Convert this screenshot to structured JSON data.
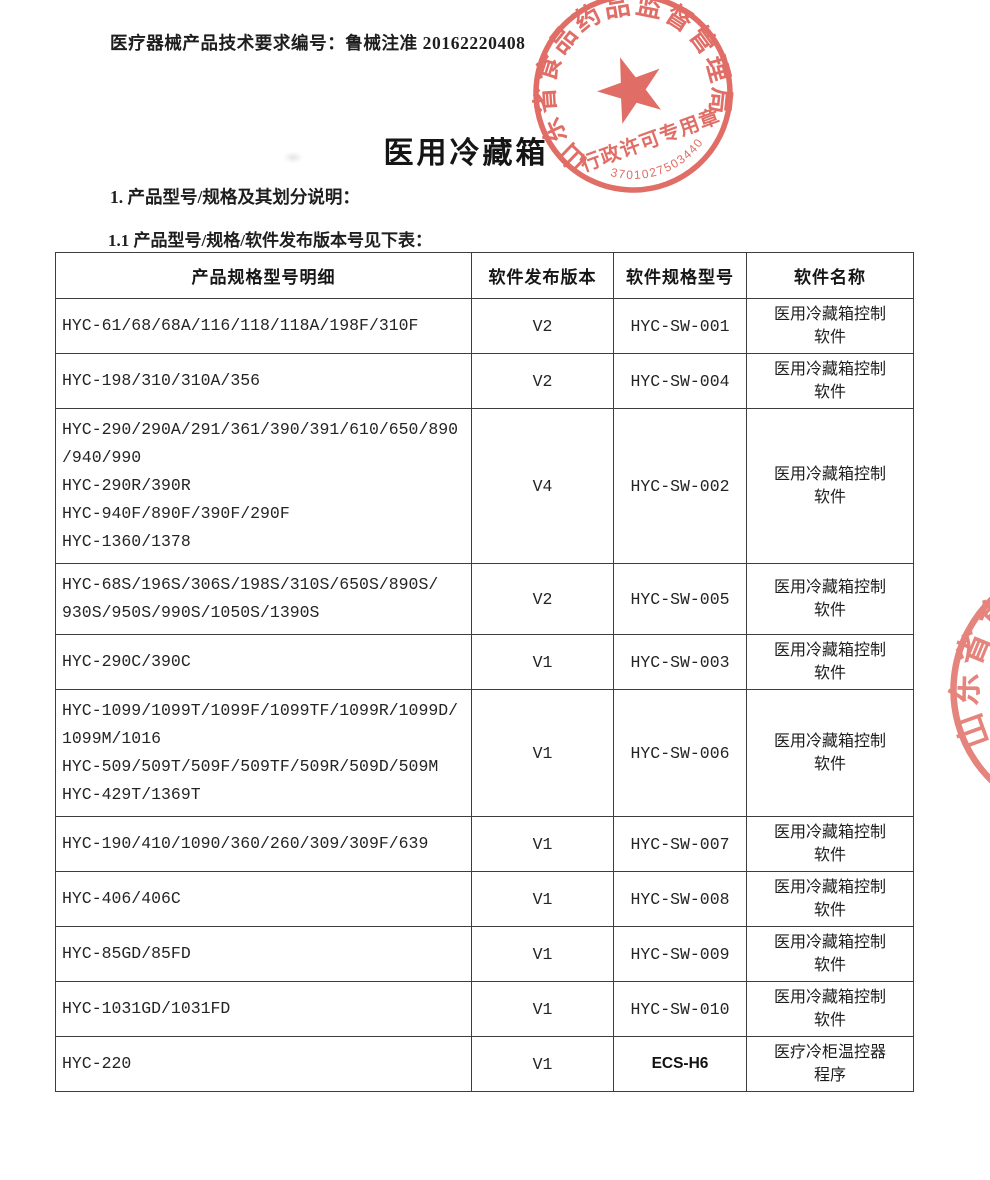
{
  "page": {
    "doc_number": "医疗器械产品技术要求编号：鲁械注准 20162220408",
    "title": "医用冷藏箱",
    "section1": "1. 产品型号/规格及其划分说明：",
    "section1_1": "1.1 产品型号/规格/软件发布版本号见下表："
  },
  "stamp": {
    "ring_text": "山东省食品药品监督管理局",
    "center_text": "行政许可专用章",
    "number": "3701027503440",
    "color": "#d9493f"
  },
  "table": {
    "headers": [
      "产品规格型号明细",
      "软件发布版本",
      "软件规格型号",
      "软件名称"
    ],
    "rows": [
      {
        "models": [
          "HYC-61/68/68A/116/118/118A/198F/310F"
        ],
        "version": "V2",
        "sw_model": "HYC-SW-001",
        "sw_name_lines": [
          "医用冷藏箱控制",
          "软件"
        ]
      },
      {
        "models": [
          "HYC-198/310/310A/356"
        ],
        "version": "V2",
        "sw_model": "HYC-SW-004",
        "sw_name_lines": [
          "医用冷藏箱控制",
          "软件"
        ]
      },
      {
        "models": [
          "HYC-290/290A/291/361/390/391/610/650/890",
          "/940/990",
          "HYC-290R/390R",
          "HYC-940F/890F/390F/290F",
          "HYC-1360/1378"
        ],
        "version": "V4",
        "sw_model": "HYC-SW-002",
        "sw_name_lines": [
          "医用冷藏箱控制",
          "软件"
        ]
      },
      {
        "models": [
          "HYC-68S/196S/306S/198S/310S/650S/890S/",
          "930S/950S/990S/1050S/1390S"
        ],
        "version": "V2",
        "sw_model": "HYC-SW-005",
        "sw_name_lines": [
          "医用冷藏箱控制",
          "软件"
        ]
      },
      {
        "models": [
          "HYC-290C/390C"
        ],
        "version": "V1",
        "sw_model": "HYC-SW-003",
        "sw_name_lines": [
          "医用冷藏箱控制",
          "软件"
        ]
      },
      {
        "models": [
          "HYC-1099/1099T/1099F/1099TF/1099R/1099D/",
          "1099M/1016",
          "HYC-509/509T/509F/509TF/509R/509D/509M",
          "HYC-429T/1369T"
        ],
        "version": "V1",
        "sw_model": "HYC-SW-006",
        "sw_name_lines": [
          "医用冷藏箱控制",
          "软件"
        ]
      },
      {
        "models": [
          "HYC-190/410/1090/360/260/309/309F/639"
        ],
        "version": "V1",
        "sw_model": "HYC-SW-007",
        "sw_name_lines": [
          "医用冷藏箱控制",
          "软件"
        ]
      },
      {
        "models": [
          "HYC-406/406C"
        ],
        "version": "V1",
        "sw_model": "HYC-SW-008",
        "sw_name_lines": [
          "医用冷藏箱控制",
          "软件"
        ]
      },
      {
        "models": [
          "HYC-85GD/85FD"
        ],
        "version": "V1",
        "sw_model": "HYC-SW-009",
        "sw_name_lines": [
          "医用冷藏箱控制",
          "软件"
        ]
      },
      {
        "models": [
          "HYC-1031GD/1031FD"
        ],
        "version": "V1",
        "sw_model": "HYC-SW-010",
        "sw_name_lines": [
          "医用冷藏箱控制",
          "软件"
        ]
      },
      {
        "models": [
          "HYC-220"
        ],
        "version": "V1",
        "sw_model": "ECS-H6",
        "sw_model_bold": true,
        "sw_name_lines": [
          "医疗冷柜温控器",
          "程序"
        ]
      }
    ]
  }
}
